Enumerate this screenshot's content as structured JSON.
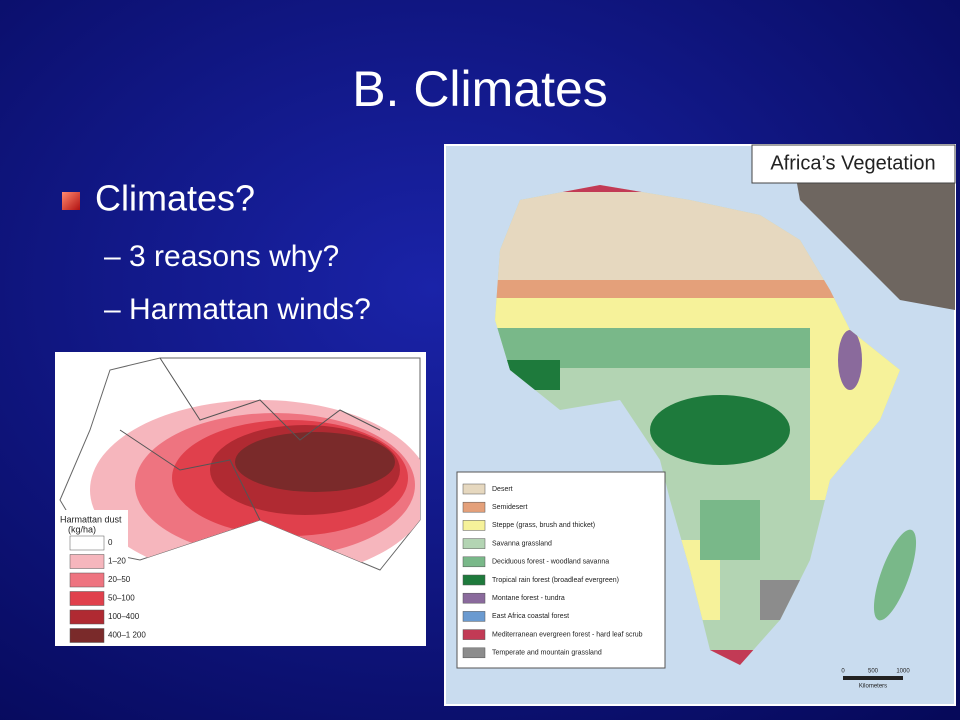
{
  "title": "B. Climates",
  "bullets": [
    {
      "text": "Climates?",
      "sub": [
        "3 reasons why?",
        "Harmattan winds?"
      ]
    }
  ],
  "vegetation_map": {
    "title": "Africa’s Vegetation",
    "legend": [
      {
        "label": "Desert",
        "color": "#e6d8bf"
      },
      {
        "label": "Semidesert",
        "color": "#e4a07a"
      },
      {
        "label": "Steppe (grass, brush and thicket)",
        "color": "#f6f29a"
      },
      {
        "label": "Savanna grassland",
        "color": "#b3d4b3"
      },
      {
        "label": "Deciduous forest - woodland savanna",
        "color": "#79b889"
      },
      {
        "label": "Tropical rain forest (broadleaf evergreen)",
        "color": "#1e7a3c"
      },
      {
        "label": "Montane forest - tundra",
        "color": "#8a6a9c"
      },
      {
        "label": "East Africa coastal forest",
        "color": "#6a9ad0"
      },
      {
        "label": "Mediterranean evergreen forest - hard leaf scrub",
        "color": "#c23a55"
      },
      {
        "label": "Temperate and mountain grassland",
        "color": "#8c8c8c"
      }
    ],
    "scale": {
      "ticks": [
        "0",
        "500",
        "1000"
      ],
      "unit": "Kilometers"
    }
  },
  "harmattan_map": {
    "legend_title": "Harmattan dust",
    "legend_unit": "(kg/ha)",
    "legend": [
      {
        "label": "0",
        "color": "#ffffff"
      },
      {
        "label": "1–20",
        "color": "#f6b6bd"
      },
      {
        "label": "20–50",
        "color": "#ee7480"
      },
      {
        "label": "50–100",
        "color": "#e0404c"
      },
      {
        "label": "100–400",
        "color": "#b02a32"
      },
      {
        "label": "400–1 200",
        "color": "#7a2a2a"
      }
    ]
  }
}
